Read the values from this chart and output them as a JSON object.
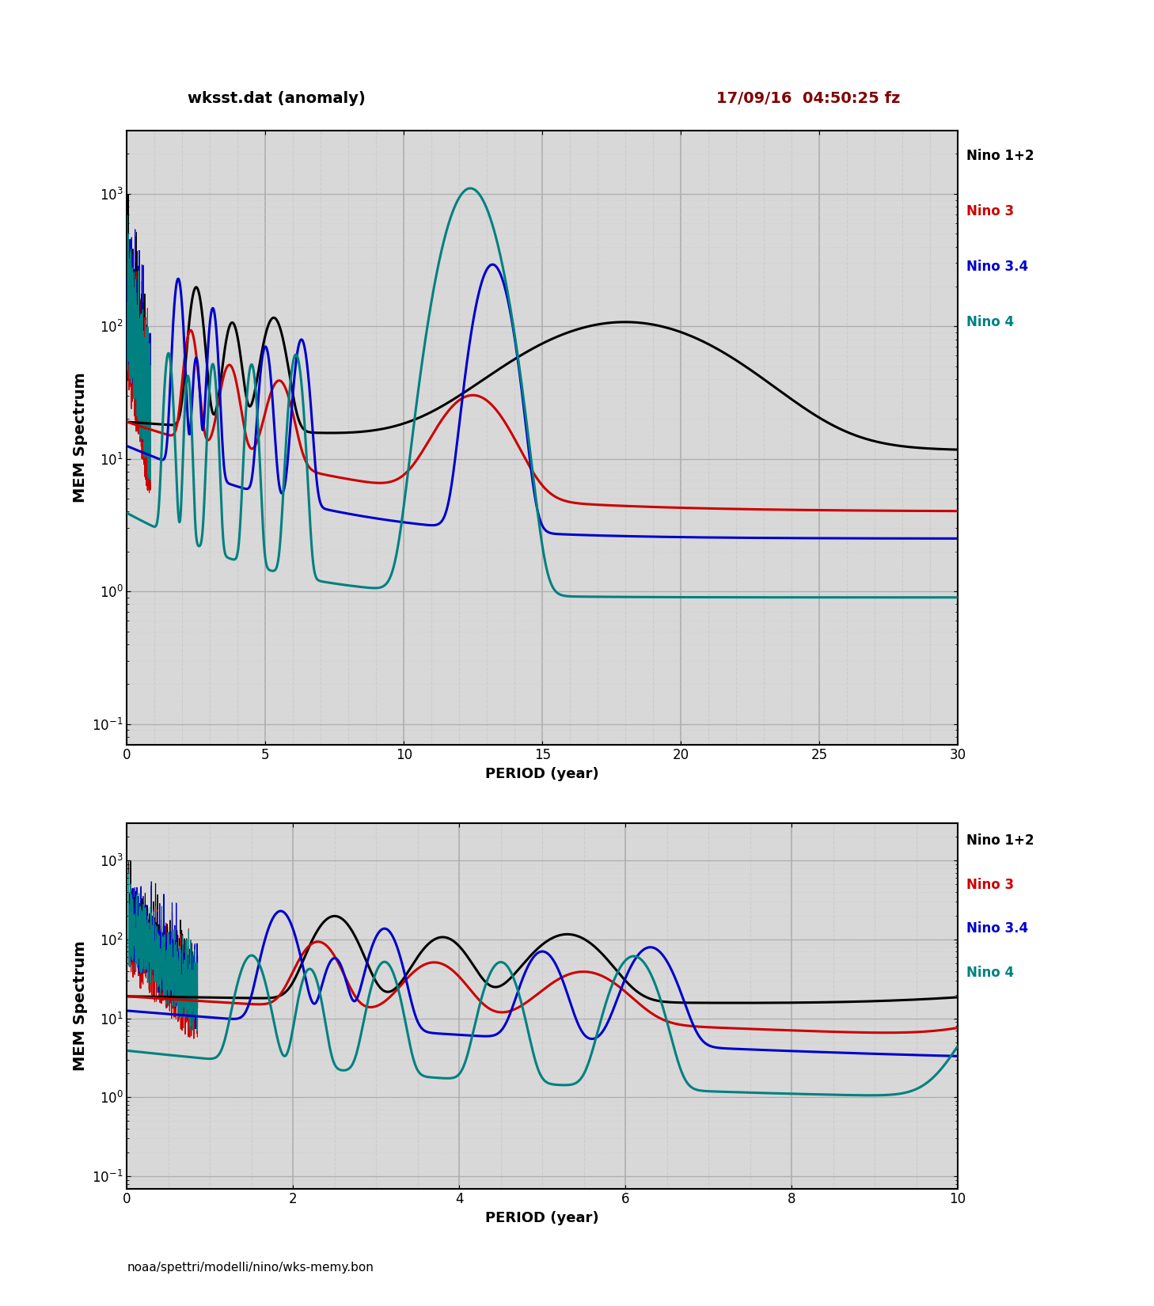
{
  "title_left": "wksst.dat (anomaly)",
  "title_right": "17/09/16  04:50:25 fz",
  "footer": "noaa/spettri/modelli/nino/wks-memy.bon",
  "ylabel": "MEM Spectrum",
  "xlabel": "PERIOD (year)",
  "legend_labels": [
    "Nino 1+2",
    "Nino 3",
    "Nino 3.4",
    "Nino 4"
  ],
  "legend_colors": [
    "#000000",
    "#cc0000",
    "#0000cc",
    "#008080"
  ],
  "plot1_xlim": [
    0,
    30
  ],
  "plot1_ylim": [
    0.07,
    3000
  ],
  "plot1_xticks": [
    0,
    5,
    10,
    15,
    20,
    25,
    30
  ],
  "plot2_xlim": [
    0,
    10
  ],
  "plot2_ylim": [
    0.07,
    3000
  ],
  "plot2_xticks": [
    0,
    2,
    4,
    6,
    8,
    10
  ],
  "bg_color": "#d8d8d8",
  "grid_major_color": "#aaaaaa",
  "grid_minor_color": "#cccccc",
  "line_width": 2.2,
  "title_right_color": "#800000"
}
